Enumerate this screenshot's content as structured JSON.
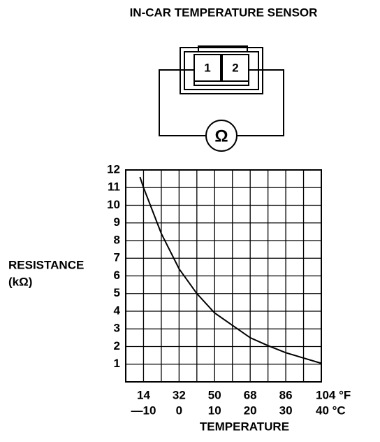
{
  "diagram": {
    "title": "IN-CAR TEMPERATURE SENSOR",
    "pins": [
      "1",
      "2"
    ],
    "meter": "Ω"
  },
  "chart_data": {
    "type": "line",
    "y_label": [
      "RESISTANCE",
      "(kΩ)"
    ],
    "x_label": "TEMPERATURE",
    "xlim": [
      -15,
      40
    ],
    "xticks": [
      {
        "value": -10,
        "label": "—10"
      },
      0,
      10,
      20,
      30,
      {
        "value": 40,
        "label": "40 °C"
      }
    ],
    "xminor": [
      -5,
      5,
      15,
      25,
      35
    ],
    "x2lim": [
      5,
      104
    ],
    "x2ticks": [
      14,
      32,
      50,
      68,
      86,
      {
        "value": 104,
        "label": "104 °F"
      }
    ],
    "ylim": [
      0,
      12
    ],
    "yticks": [
      1,
      2,
      3,
      4,
      5,
      6,
      7,
      8,
      9,
      10,
      11,
      12
    ],
    "grid": true,
    "color": "#000000",
    "x": [
      -11,
      -10,
      -5,
      0,
      5,
      10,
      15,
      20,
      25,
      30,
      35,
      40
    ],
    "values": [
      11.6,
      11.0,
      8.4,
      6.4,
      5.0,
      3.9,
      3.2,
      2.5,
      2.05,
      1.65,
      1.35,
      1.05
    ]
  }
}
